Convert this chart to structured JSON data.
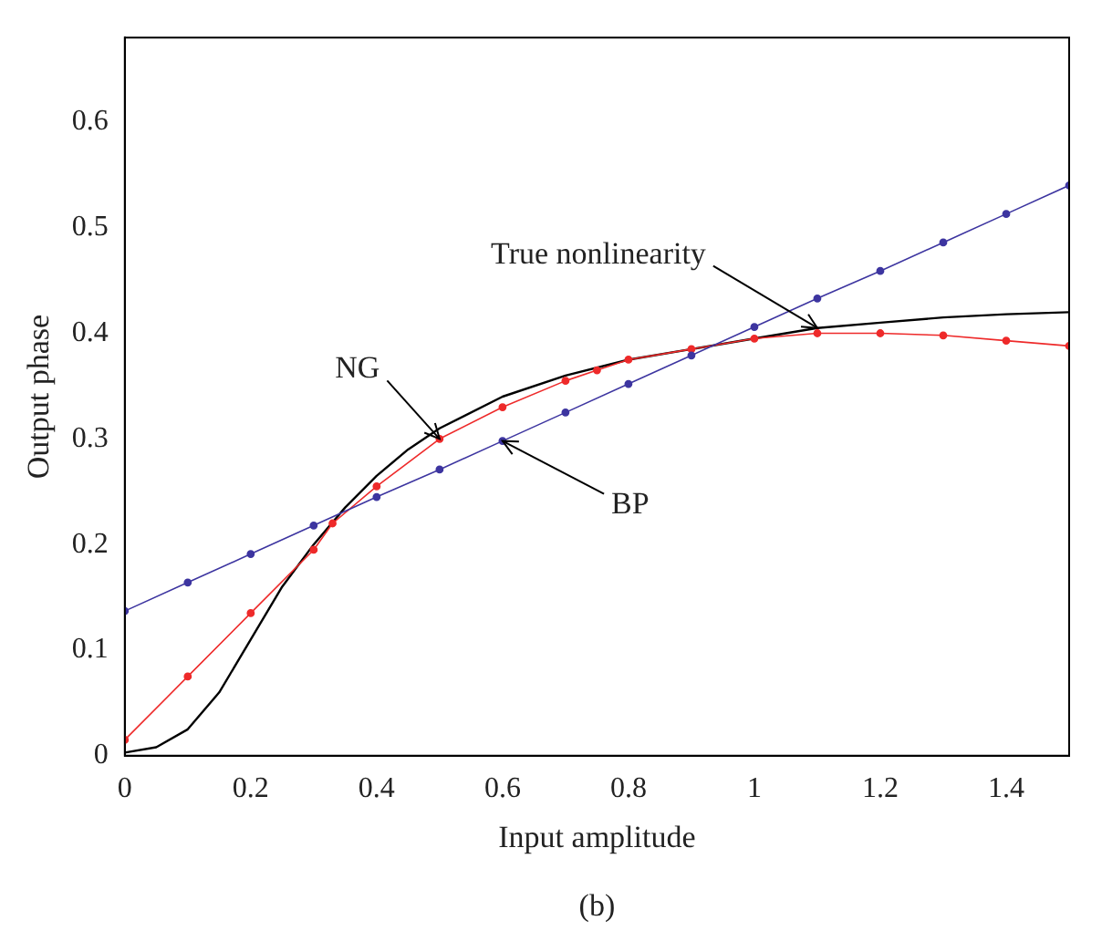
{
  "chart_data": {
    "type": "line",
    "xlabel": "Input amplitude",
    "ylabel": "Output phase",
    "xlim": [
      0,
      1.5
    ],
    "ylim": [
      0,
      0.68
    ],
    "xticks": [
      0,
      0.2,
      0.4,
      0.6,
      0.8,
      1,
      1.2,
      1.4
    ],
    "yticks": [
      0,
      0.1,
      0.2,
      0.3,
      0.4,
      0.5,
      0.6
    ],
    "grid": false,
    "legend": false,
    "line_style": "solid",
    "series": [
      {
        "name": "BP",
        "color": "#3d35a0",
        "marker": "circle",
        "x": [
          0,
          0.1,
          0.2,
          0.3,
          0.4,
          0.5,
          0.6,
          0.7,
          0.8,
          0.9,
          1,
          1.1,
          1.2,
          1.3,
          1.4,
          1.5
        ],
        "values": [
          0.137,
          0.164,
          0.191,
          0.218,
          0.245,
          0.271,
          0.298,
          0.325,
          0.352,
          0.379,
          0.406,
          0.433,
          0.459,
          0.486,
          0.513,
          0.54
        ]
      },
      {
        "name": "NG",
        "color": "#ee2a2a",
        "marker": "circle",
        "x": [
          0,
          0.1,
          0.2,
          0.3,
          0.33,
          0.4,
          0.5,
          0.6,
          0.7,
          0.75,
          0.8,
          0.9,
          1,
          1.1,
          1.2,
          1.3,
          1.4,
          1.5
        ],
        "values": [
          0.015,
          0.075,
          0.135,
          0.195,
          0.22,
          0.255,
          0.3,
          0.33,
          0.355,
          0.365,
          0.375,
          0.385,
          0.395,
          0.4,
          0.4,
          0.398,
          0.393,
          0.388
        ]
      },
      {
        "name": "True nonlinearity",
        "color": "#000000",
        "marker": "none",
        "x": [
          0,
          0.05,
          0.1,
          0.15,
          0.2,
          0.25,
          0.3,
          0.35,
          0.4,
          0.45,
          0.5,
          0.6,
          0.7,
          0.8,
          0.9,
          1,
          1.1,
          1.2,
          1.3,
          1.4,
          1.5
        ],
        "values": [
          0.003,
          0.008,
          0.025,
          0.06,
          0.11,
          0.16,
          0.2,
          0.235,
          0.265,
          0.29,
          0.31,
          0.34,
          0.36,
          0.375,
          0.385,
          0.395,
          0.405,
          0.41,
          0.415,
          0.418,
          0.42
        ]
      }
    ],
    "annotations": [
      "(b)"
    ]
  }
}
